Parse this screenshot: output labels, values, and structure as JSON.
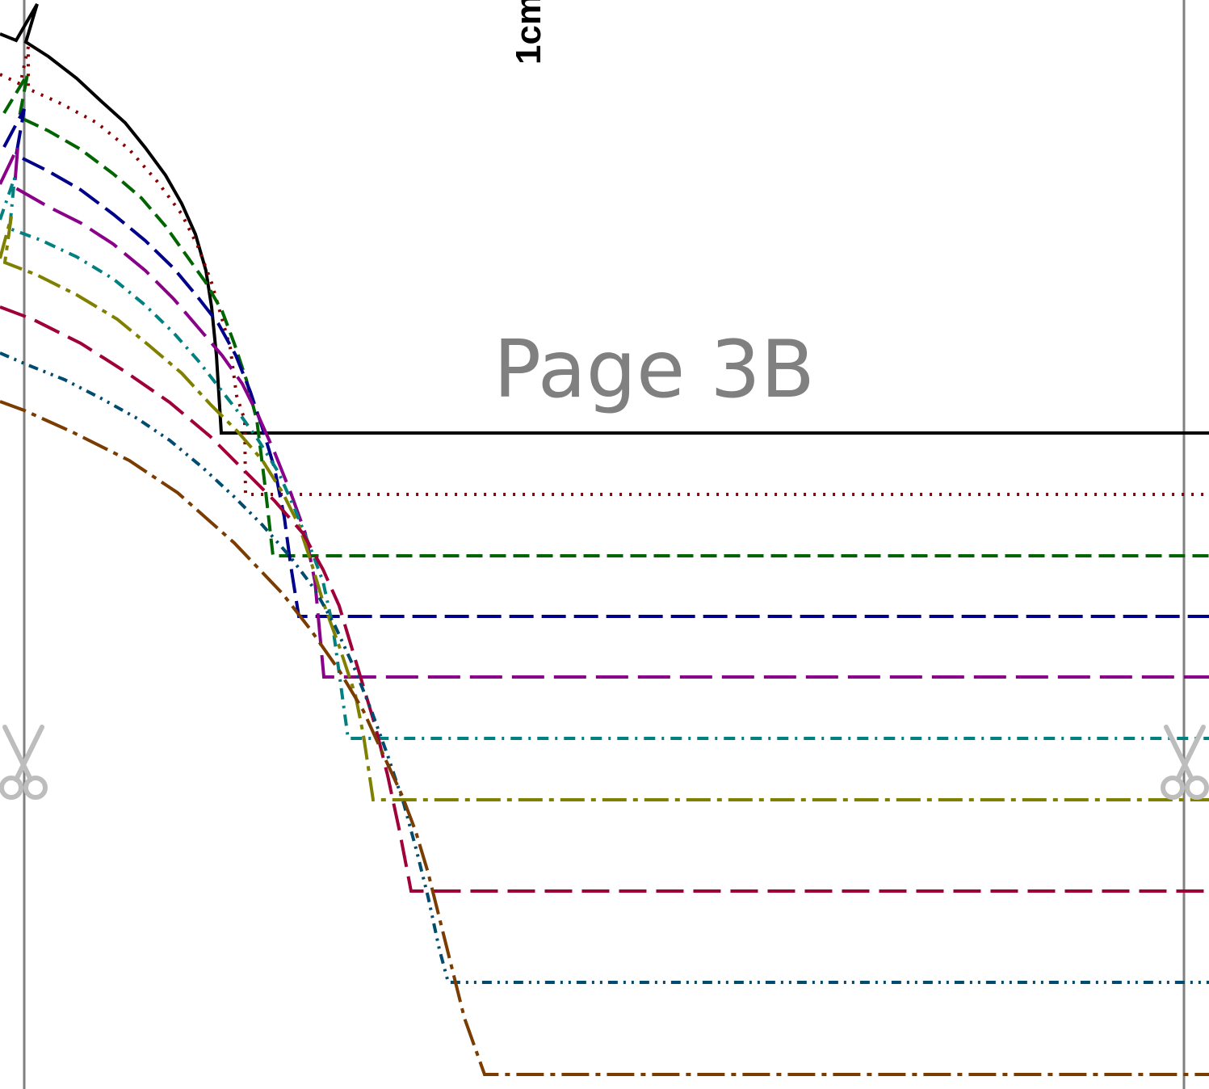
{
  "page": {
    "label": "Page 3B",
    "scale_label": "1cm"
  },
  "icons": {
    "cut_marks": [
      "scissors-icon",
      "scissors-icon"
    ]
  },
  "guides": {
    "color": "#808080"
  },
  "sizes": [
    {
      "color": "#000000",
      "dash": "solid"
    },
    {
      "color": "#8b0000",
      "dash": "dotted"
    },
    {
      "color": "#006400",
      "dash": "dashed"
    },
    {
      "color": "#00008b",
      "dash": "long-dash"
    },
    {
      "color": "#8b008b",
      "dash": "long-dash"
    },
    {
      "color": "#008080",
      "dash": "dash-dot"
    },
    {
      "color": "#808000",
      "dash": "long-dash-dot"
    },
    {
      "color": "#a0003a",
      "dash": "long-dash"
    },
    {
      "color": "#004c70",
      "dash": "dash-dot-dot"
    },
    {
      "color": "#7a3c00",
      "dash": "long-dash-dot"
    }
  ]
}
